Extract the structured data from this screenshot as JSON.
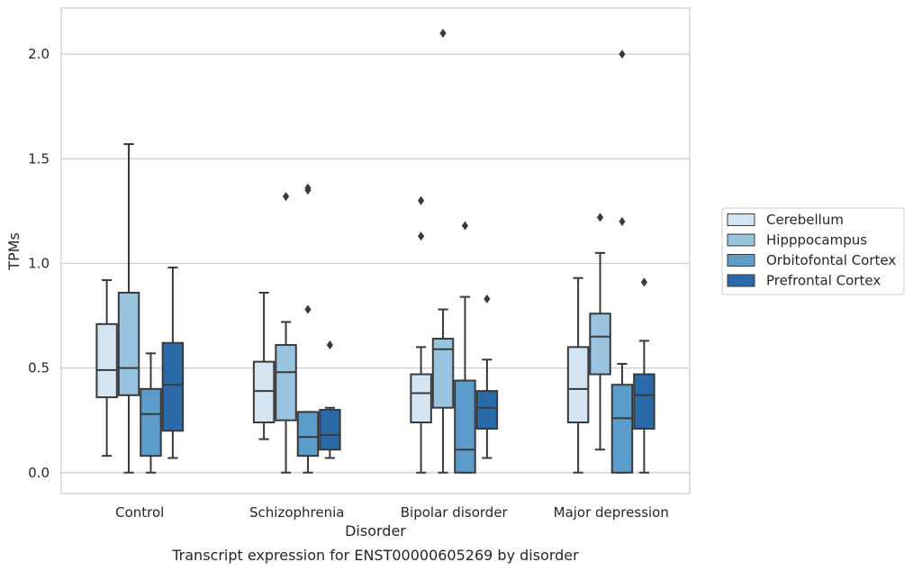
{
  "chart_data": {
    "type": "box",
    "title": "",
    "caption": "Transcript expression for ENST00000605269 by disorder",
    "xlabel": "Disorder",
    "ylabel": "TPMs",
    "ylim": [
      -0.1,
      2.22
    ],
    "yticks": [
      0.0,
      0.5,
      1.0,
      1.5,
      2.0
    ],
    "ytick_labels": [
      "0.0",
      "0.5",
      "1.0",
      "1.5",
      "2.0"
    ],
    "grid": "horizontal",
    "legend_position": "right",
    "categories": [
      "Control",
      "Schizophrenia",
      "Bipolar disorder",
      "Major depression"
    ],
    "series": [
      {
        "name": "Cerebellum",
        "color": "#d3e4f3",
        "boxes": [
          {
            "whislo": 0.08,
            "q1": 0.36,
            "med": 0.49,
            "q3": 0.71,
            "whishi": 0.92,
            "fliers": []
          },
          {
            "whislo": 0.16,
            "q1": 0.24,
            "med": 0.39,
            "q3": 0.53,
            "whishi": 0.86,
            "fliers": []
          },
          {
            "whislo": 0.0,
            "q1": 0.24,
            "med": 0.38,
            "q3": 0.47,
            "whishi": 0.6,
            "fliers": [
              1.13,
              1.3
            ]
          },
          {
            "whislo": 0.0,
            "q1": 0.24,
            "med": 0.4,
            "q3": 0.6,
            "whishi": 0.93,
            "fliers": []
          }
        ]
      },
      {
        "name": "Hipppocampus",
        "color": "#98c4df",
        "boxes": [
          {
            "whislo": 0.0,
            "q1": 0.37,
            "med": 0.5,
            "q3": 0.86,
            "whishi": 1.57,
            "fliers": []
          },
          {
            "whislo": 0.0,
            "q1": 0.25,
            "med": 0.48,
            "q3": 0.61,
            "whishi": 0.72,
            "fliers": [
              1.32
            ]
          },
          {
            "whislo": 0.0,
            "q1": 0.31,
            "med": 0.59,
            "q3": 0.64,
            "whishi": 0.78,
            "fliers": [
              2.1
            ]
          },
          {
            "whislo": 0.11,
            "q1": 0.47,
            "med": 0.65,
            "q3": 0.76,
            "whishi": 1.05,
            "fliers": [
              1.22
            ]
          }
        ]
      },
      {
        "name": "Orbitofontal Cortex",
        "color": "#5b9ccb",
        "boxes": [
          {
            "whislo": 0.0,
            "q1": 0.08,
            "med": 0.28,
            "q3": 0.4,
            "whishi": 0.57,
            "fliers": []
          },
          {
            "whislo": 0.0,
            "q1": 0.08,
            "med": 0.17,
            "q3": 0.29,
            "whishi": 0.29,
            "fliers": [
              0.78,
              1.35,
              1.36
            ]
          },
          {
            "whislo": 0.0,
            "q1": 0.0,
            "med": 0.11,
            "q3": 0.44,
            "whishi": 0.84,
            "fliers": [
              1.18
            ]
          },
          {
            "whislo": 0.0,
            "q1": 0.0,
            "med": 0.26,
            "q3": 0.42,
            "whishi": 0.52,
            "fliers": [
              1.2,
              2.0
            ]
          }
        ]
      },
      {
        "name": "Prefrontal Cortex",
        "color": "#2a6aa8",
        "boxes": [
          {
            "whislo": 0.07,
            "q1": 0.2,
            "med": 0.42,
            "q3": 0.62,
            "whishi": 0.98,
            "fliers": []
          },
          {
            "whislo": 0.07,
            "q1": 0.11,
            "med": 0.18,
            "q3": 0.3,
            "whishi": 0.31,
            "fliers": [
              0.61
            ]
          },
          {
            "whislo": 0.07,
            "q1": 0.21,
            "med": 0.31,
            "q3": 0.39,
            "whishi": 0.54,
            "fliers": [
              0.83
            ]
          },
          {
            "whislo": 0.0,
            "q1": 0.21,
            "med": 0.37,
            "q3": 0.47,
            "whishi": 0.63,
            "fliers": [
              0.91
            ]
          }
        ]
      }
    ]
  }
}
